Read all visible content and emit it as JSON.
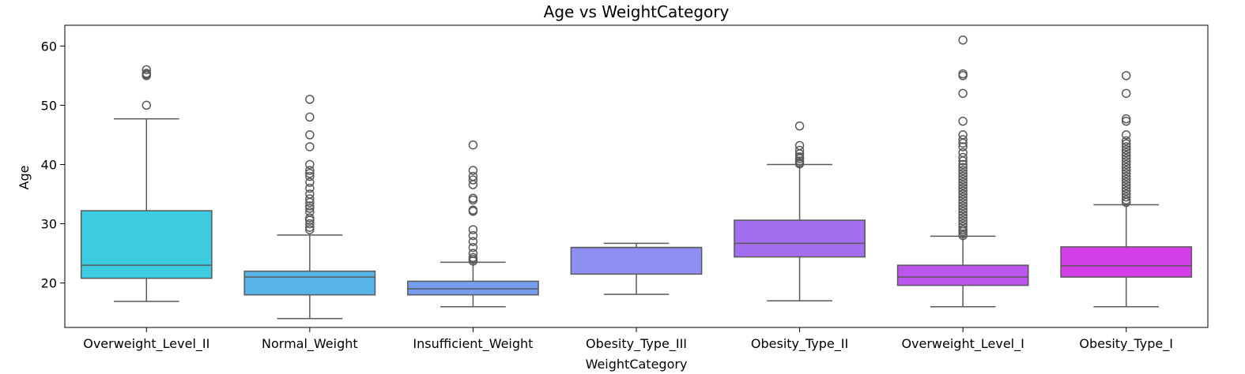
{
  "chart_data": {
    "type": "box",
    "title": "Age vs WeightCategory",
    "xlabel": "WeightCategory",
    "ylabel": "Age",
    "ylim": [
      12.5,
      63.5
    ],
    "yticks": [
      20,
      30,
      40,
      50,
      60
    ],
    "grid": false,
    "legend": "none",
    "categories": [
      "Overweight_Level_II",
      "Normal_Weight",
      "Insufficient_Weight",
      "Obesity_Type_III",
      "Obesity_Type_II",
      "Overweight_Level_I",
      "Obesity_Type_I"
    ],
    "colors": [
      "#3ccbe0",
      "#58b3e6",
      "#749cef",
      "#8d90f2",
      "#a46ef0",
      "#bb55ed",
      "#d43ee8"
    ],
    "boxes": [
      {
        "whisker_low": 16.9,
        "q1": 20.8,
        "median": 23.0,
        "q3": 32.2,
        "whisker_high": 47.7,
        "outliers": [
          50.0,
          55.0,
          55.2,
          55.4,
          56.0
        ]
      },
      {
        "whisker_low": 14.0,
        "q1": 18.0,
        "median": 21.0,
        "q3": 22.0,
        "whisker_high": 28.1,
        "outliers": [
          29.0,
          29.4,
          30.0,
          30.6,
          31.0,
          32.0,
          32.6,
          33.0,
          33.6,
          34.2,
          35.0,
          36.0,
          37.0,
          38.0,
          38.5,
          39.0,
          40.0,
          43.0,
          45.0,
          48.0,
          51.0
        ]
      },
      {
        "whisker_low": 16.0,
        "q1": 18.0,
        "median": 19.0,
        "q3": 20.3,
        "whisker_high": 23.5,
        "outliers": [
          23.7,
          24.0,
          24.3,
          25.0,
          26.0,
          27.0,
          28.0,
          29.0,
          32.1,
          32.3,
          34.0,
          34.3,
          36.6,
          37.4,
          38.0,
          39.0,
          43.3
        ]
      },
      {
        "whisker_low": 18.1,
        "q1": 21.5,
        "median": 26.0,
        "q3": 26.0,
        "whisker_high": 26.7,
        "outliers": []
      },
      {
        "whisker_low": 17.0,
        "q1": 24.4,
        "median": 26.7,
        "q3": 30.6,
        "whisker_high": 40.0,
        "outliers": [
          40.1,
          40.3,
          40.6,
          41.0,
          41.3,
          41.8,
          42.4,
          43.2,
          46.5
        ]
      },
      {
        "whisker_low": 16.0,
        "q1": 19.6,
        "median": 21.0,
        "q3": 23.0,
        "whisker_high": 27.9,
        "outliers": [
          28.0,
          28.3,
          28.7,
          29.0,
          29.5,
          30.0,
          30.5,
          31.0,
          31.5,
          32.0,
          32.5,
          33.0,
          33.5,
          34.0,
          34.5,
          35.0,
          35.5,
          36.0,
          36.5,
          37.0,
          37.5,
          38.0,
          38.5,
          39.0,
          39.5,
          40.0,
          40.6,
          41.2,
          42.0,
          43.0,
          43.6,
          44.2,
          45.0,
          47.3,
          52.0,
          55.0,
          55.3,
          61.0
        ]
      },
      {
        "whisker_low": 16.0,
        "q1": 21.0,
        "median": 22.9,
        "q3": 26.1,
        "whisker_high": 33.2,
        "outliers": [
          33.6,
          34.0,
          34.5,
          35.0,
          35.5,
          36.0,
          36.5,
          37.0,
          37.5,
          38.0,
          38.5,
          39.0,
          39.5,
          40.0,
          40.5,
          41.0,
          41.5,
          42.0,
          42.5,
          43.0,
          43.5,
          44.0,
          45.0,
          47.3,
          47.7,
          52.0,
          55.0
        ]
      }
    ]
  }
}
